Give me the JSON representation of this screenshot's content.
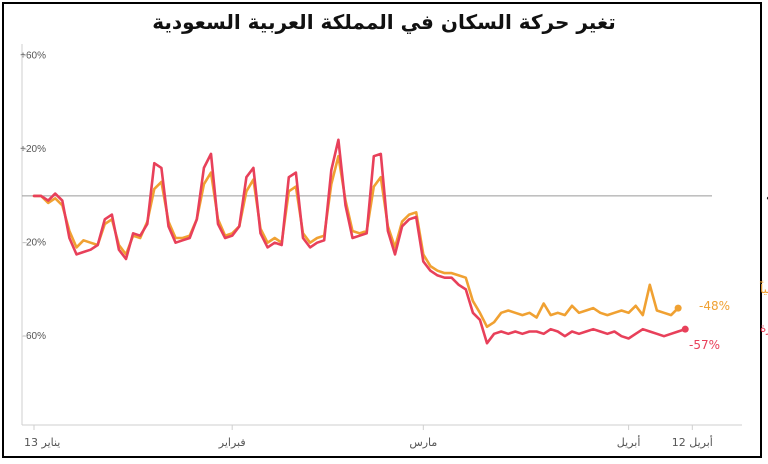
{
  "chart_data": {
    "type": "line",
    "title": "تغير حركة السكان في المملكة العربية السعودية",
    "y_ticks": [
      "+60%",
      "+20%",
      "-20%",
      "-60%"
    ],
    "y_tick_values": [
      60,
      20,
      -20,
      -60
    ],
    "ylim": [
      -98,
      65
    ],
    "baseline_label": "خط المقارنة",
    "x_ticks": [
      "يناير 13",
      "فبراير",
      "مارس",
      "أبريل",
      "أبريل 12"
    ],
    "x_tick_days": [
      0,
      28,
      55,
      84,
      93
    ],
    "xlim": [
      0,
      95.5
    ],
    "grid": false,
    "series": [
      {
        "name": "التنقل بالسيارة",
        "end_label": "-57%",
        "color": "#e8405a",
        "values": [
          0,
          0,
          -2,
          1,
          -2,
          -18,
          -25,
          -24,
          -23,
          -21,
          -10,
          -8,
          -23,
          -27,
          -16,
          -17,
          -12,
          14,
          12,
          -13,
          -20,
          -19,
          -18,
          -10,
          12,
          18,
          -12,
          -18,
          -17,
          -13,
          8,
          12,
          -16,
          -22,
          -20,
          -21,
          8,
          10,
          -18,
          -22,
          -20,
          -19,
          11,
          24,
          -4,
          -18,
          -17,
          -16,
          17,
          18,
          -15,
          -25,
          -13,
          -10,
          -9,
          -28,
          -32,
          -34,
          -35,
          -35,
          -38,
          -40,
          -50,
          -53,
          -63,
          -59,
          -58,
          -59,
          -58,
          -59,
          -58,
          -58,
          -59,
          -57,
          -58,
          -60,
          -58,
          -59,
          -58,
          -57,
          -58,
          -59,
          -58,
          -60,
          -61,
          -59,
          -57,
          -58,
          -59,
          -60,
          -59,
          -58,
          -57
        ]
      },
      {
        "name": "التنقل مشياً",
        "end_label": "-48%",
        "color": "#f0a132",
        "values": [
          0,
          0,
          -3,
          -1,
          -4,
          -15,
          -22,
          -19,
          -20,
          -21,
          -12,
          -10,
          -21,
          -25,
          -17,
          -18,
          -11,
          3,
          6,
          -11,
          -18,
          -18,
          -17,
          -10,
          5,
          10,
          -10,
          -17,
          -16,
          -13,
          2,
          7,
          -14,
          -20,
          -18,
          -20,
          2,
          4,
          -16,
          -20,
          -18,
          -17,
          5,
          17,
          -2,
          -15,
          -16,
          -15,
          4,
          8,
          -13,
          -22,
          -11,
          -8,
          -7,
          -25,
          -30,
          -32,
          -33,
          -33,
          -34,
          -35,
          -45,
          -50,
          -56,
          -54,
          -50,
          -49,
          -50,
          -51,
          -50,
          -52,
          -46,
          -51,
          -50,
          -51,
          -47,
          -50,
          -49,
          -48,
          -50,
          -51,
          -50,
          -49,
          -50,
          -47,
          -51,
          -38,
          -49,
          -50,
          -51,
          -48
        ]
      }
    ]
  }
}
